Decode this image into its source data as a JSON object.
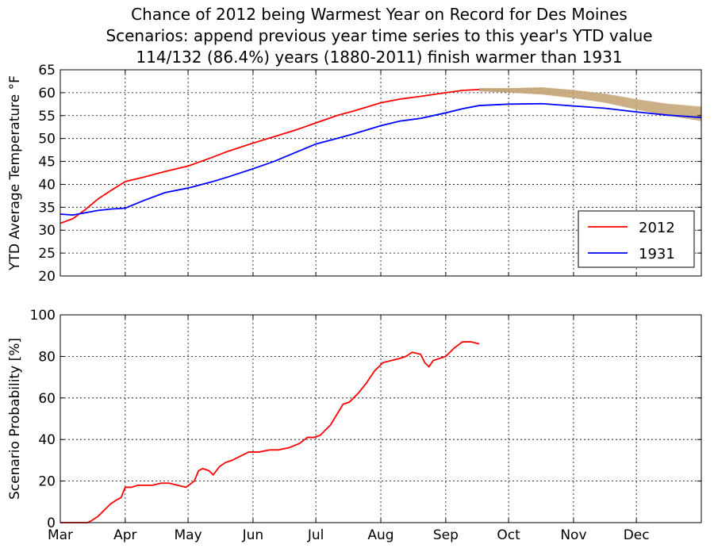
{
  "title_lines": [
    "Chance of 2012 being Warmest Year on Record for Des Moines",
    "Scenarios: append previous year time series to this year's YTD value",
    "114/132 (86.4%) years (1880-2011) finish warmer than 1931"
  ],
  "months": [
    "Mar",
    "Apr",
    "May",
    "Jun",
    "Jul",
    "Aug",
    "Sep",
    "Oct",
    "Nov",
    "Dec"
  ],
  "colors": {
    "y2012": "#ff0000",
    "y1931": "#0000ff",
    "scenario": "#c8a978"
  },
  "chart_data": [
    {
      "type": "line",
      "ylabel": "YTD Average Temperature °F",
      "xlim_days": [
        60,
        366
      ],
      "ylim": [
        20,
        65
      ],
      "yticks": [
        20,
        25,
        30,
        35,
        40,
        45,
        50,
        55,
        60,
        65
      ],
      "grid": true,
      "legend_position": "lower-right",
      "series": [
        {
          "name": "2012",
          "color": "#ff0000",
          "x": [
            60,
            66,
            72,
            78,
            84,
            91,
            100,
            110,
            121,
            132,
            140,
            152,
            162,
            172,
            182,
            192,
            200,
            213,
            222,
            232,
            244,
            252,
            260
          ],
          "y": [
            31.5,
            32.5,
            34.5,
            36.8,
            38.6,
            40.6,
            41.6,
            42.8,
            44.0,
            45.8,
            47.2,
            49.0,
            50.4,
            51.8,
            53.4,
            55.0,
            56.0,
            57.8,
            58.6,
            59.2,
            60.0,
            60.5,
            60.7
          ]
        },
        {
          "name": "1931",
          "color": "#0000ff",
          "x": [
            60,
            66,
            72,
            78,
            84,
            91,
            100,
            110,
            121,
            132,
            140,
            152,
            162,
            172,
            182,
            192,
            200,
            213,
            222,
            232,
            244,
            252,
            260,
            274,
            290,
            305,
            320,
            335,
            350,
            366
          ],
          "y": [
            33.5,
            33.3,
            33.8,
            34.3,
            34.6,
            34.8,
            36.5,
            38.2,
            39.2,
            40.5,
            41.6,
            43.4,
            45.0,
            46.9,
            48.8,
            50.0,
            51.0,
            52.8,
            53.8,
            54.4,
            55.6,
            56.5,
            57.2,
            57.5,
            57.6,
            57.1,
            56.6,
            55.8,
            55.1,
            54.6
          ]
        }
      ],
      "scenario_band": {
        "name": "scenarios",
        "x": [
          260,
          275,
          290,
          305,
          320,
          335,
          350,
          366
        ],
        "y_low": [
          60.3,
          60.0,
          59.6,
          58.8,
          57.8,
          56.3,
          55.0,
          53.8
        ],
        "y_high": [
          61.0,
          61.0,
          61.2,
          60.6,
          59.8,
          58.6,
          57.6,
          57.0
        ]
      }
    },
    {
      "type": "line",
      "ylabel": "Scenario Probability [%]",
      "xlim_days": [
        60,
        366
      ],
      "ylim": [
        0,
        100
      ],
      "yticks": [
        0,
        20,
        40,
        60,
        80,
        100
      ],
      "grid": true,
      "series": [
        {
          "name": "",
          "color": "#ff0000",
          "x": [
            60,
            70,
            73,
            75,
            78,
            81,
            84,
            87,
            89,
            91,
            94,
            97,
            100,
            104,
            108,
            112,
            116,
            120,
            124,
            126,
            128,
            131,
            133,
            136,
            139,
            142,
            146,
            150,
            155,
            160,
            164,
            169,
            174,
            178,
            181,
            184,
            186,
            189,
            192,
            195,
            198,
            202,
            206,
            210,
            214,
            218,
            222,
            225,
            228,
            232,
            234,
            236,
            238,
            241,
            244,
            246,
            248,
            252,
            256,
            260
          ],
          "y": [
            0,
            0,
            0,
            1,
            3,
            6,
            9,
            11,
            12,
            17,
            17,
            18,
            18,
            18,
            19,
            19,
            18,
            17,
            20,
            25,
            26,
            25,
            23,
            27,
            29,
            30,
            32,
            34,
            34,
            35,
            35,
            36,
            38,
            41,
            41,
            42,
            44,
            47,
            52,
            57,
            58,
            62,
            67,
            73,
            77,
            78,
            79,
            80,
            82,
            81,
            77,
            75,
            78,
            79,
            80,
            82,
            84,
            87,
            87,
            86
          ]
        }
      ]
    }
  ]
}
